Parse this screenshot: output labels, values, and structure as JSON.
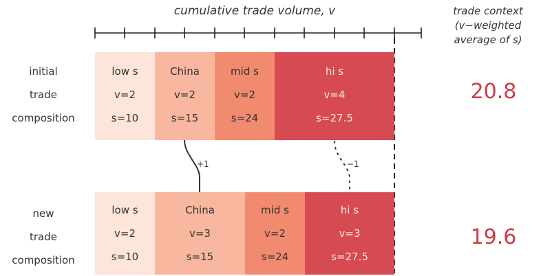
{
  "axis_title": "cumulative trade volume, v",
  "context_title": [
    "trade context",
    "(v−weighted",
    "average of s)"
  ],
  "rows": [
    {
      "label": [
        "initial",
        "trade",
        "composition"
      ],
      "blocks": [
        {
          "name": "low s",
          "v": "v=2",
          "s": "s=10"
        },
        {
          "name": "China",
          "v": "v=2",
          "s": "s=15"
        },
        {
          "name": "mid s",
          "v": "v=2",
          "s": "s=24"
        },
        {
          "name": "hi s",
          "v": "v=4",
          "s": "s=27.5"
        }
      ],
      "context": "20.8"
    },
    {
      "label": [
        "new",
        "trade",
        "composition"
      ],
      "blocks": [
        {
          "name": "low s",
          "v": "v=2",
          "s": "s=10"
        },
        {
          "name": "China",
          "v": "v=3",
          "s": "s=15"
        },
        {
          "name": "mid s",
          "v": "v=2",
          "s": "s=24"
        },
        {
          "name": "hi s",
          "v": "v=3",
          "s": "s=27.5"
        }
      ],
      "context": "19.6"
    }
  ],
  "changes": {
    "china": "+1",
    "hi": "−1"
  },
  "colors": {
    "low": "#fde5da",
    "china": "#f8b79e",
    "mid": "#f28a70",
    "hi": "#d64a52",
    "accent": "#cf3a42"
  }
}
